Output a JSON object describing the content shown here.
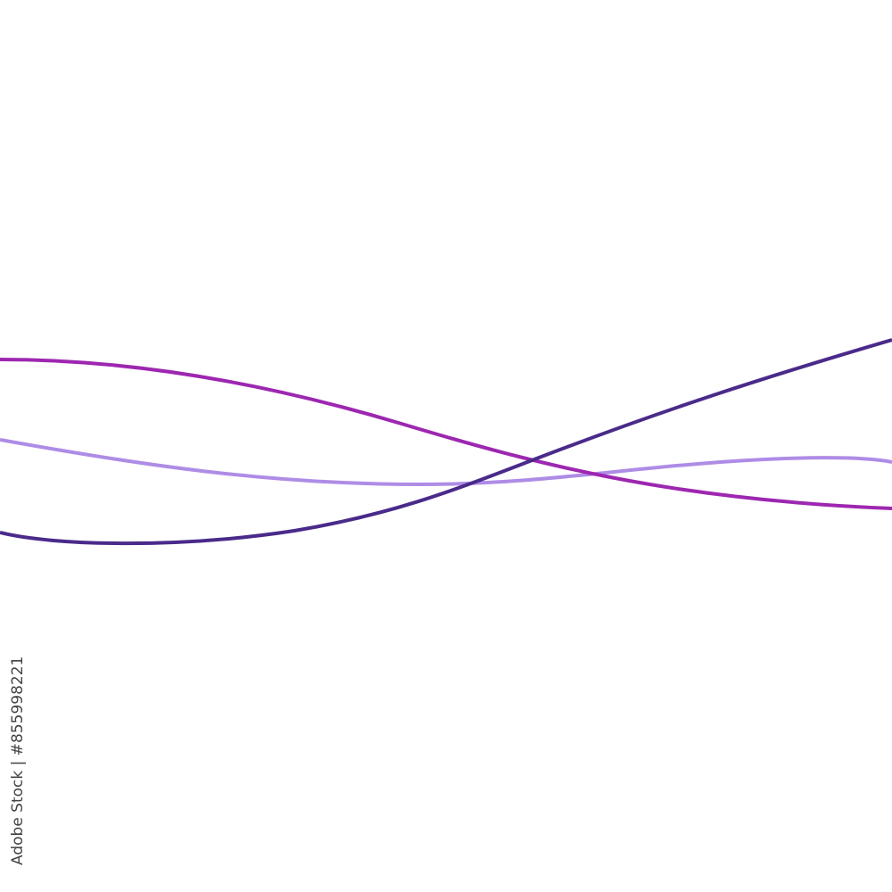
{
  "watermark": {
    "text": "Adobe Stock | #855998221"
  },
  "lines": [
    {
      "name": "dark-violet",
      "color": "#4a2a8a"
    },
    {
      "name": "magenta",
      "color": "#9d27b0"
    },
    {
      "name": "lavender",
      "color": "#ae8ce6"
    }
  ]
}
